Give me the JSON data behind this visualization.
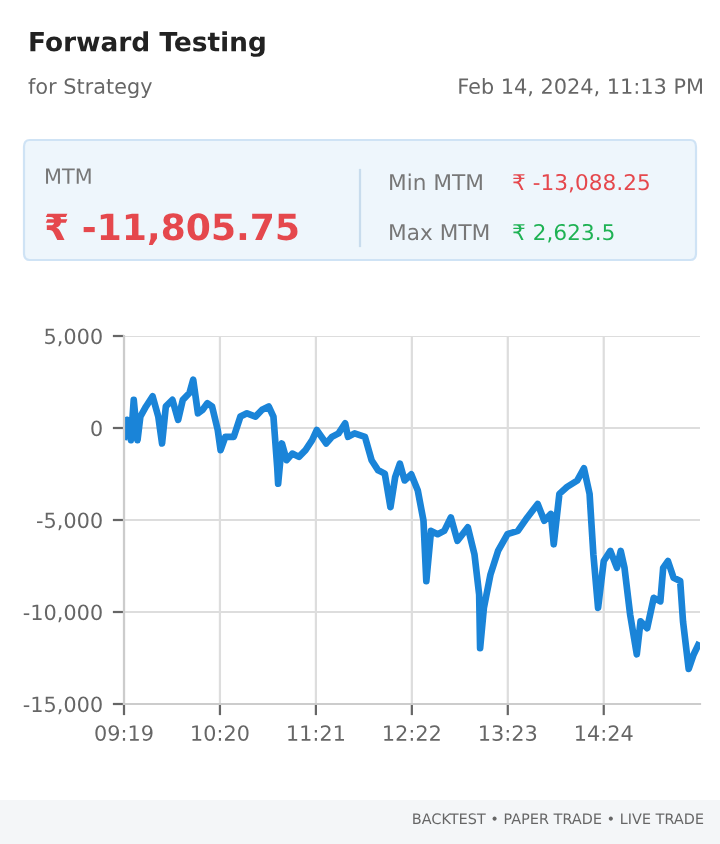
{
  "chart_data": {
    "type": "line",
    "title": "Forward Testing",
    "subtitle": "for Strategy",
    "annotations": [
      "Feb 14, 2024, 11:13 PM",
      "MTM",
      "₹ -11,805.75",
      "Min MTM",
      "₹ -13,088.25",
      "Max MTM",
      "₹ 2,623.5",
      "BACKTEST • PAPER TRADE • LIVE TRADE"
    ],
    "series": [
      {
        "color": "#1a84d8",
        "x": [
          9.32,
          9.35,
          9.39,
          9.42,
          9.46,
          9.49,
          9.55,
          9.62,
          9.68,
          9.72,
          9.76,
          9.83,
          9.89,
          9.94,
          10.01,
          10.05,
          10.1,
          10.15,
          10.2,
          10.25,
          10.31,
          10.34,
          10.39,
          10.48,
          10.55,
          10.62,
          10.71,
          10.78,
          10.85,
          10.9,
          10.94,
          10.95,
          10.99,
          11.04,
          11.1,
          11.17,
          11.24,
          11.31,
          11.36,
          11.41,
          11.46,
          11.52,
          11.59,
          11.66,
          11.69,
          11.76,
          11.87,
          11.94,
          12.01,
          12.08,
          12.14,
          12.19,
          12.24,
          12.29,
          12.36,
          12.43,
          12.49,
          12.52,
          12.57,
          12.64,
          12.71,
          12.78,
          12.85,
          12.96,
          13.03,
          13.08,
          13.09,
          13.13,
          13.2,
          13.28,
          13.38,
          13.49,
          13.59,
          13.7,
          13.77,
          13.84,
          13.87,
          13.93,
          14.01,
          14.12,
          14.19,
          14.25,
          14.29,
          14.34,
          14.4,
          14.47,
          14.54,
          14.58,
          14.62,
          14.68,
          14.75,
          14.79,
          14.86,
          14.93,
          15.0,
          15.03,
          15.08,
          15.14,
          15.21,
          15.24,
          15.3,
          15.35,
          15.4
        ],
        "values": [
          -470,
          440,
          -660,
          1530,
          -660,
          620,
          1170,
          1720,
          620,
          -840,
          1170,
          1530,
          440,
          1530,
          1900,
          2623.5,
          800,
          990,
          1350,
          1170,
          -110,
          -1200,
          -480,
          -480,
          620,
          800,
          620,
          990,
          1170,
          620,
          -2120,
          -3030,
          -840,
          -1750,
          -1390,
          -1570,
          -1200,
          -660,
          -110,
          -480,
          -840,
          -480,
          -290,
          260,
          -480,
          -290,
          -480,
          -1750,
          -2300,
          -2480,
          -4300,
          -2670,
          -1940,
          -2850,
          -2520,
          -3400,
          -5040,
          -8320,
          -5590,
          -5770,
          -5590,
          -4860,
          -6130,
          -5400,
          -6860,
          -9050,
          -11970,
          -9780,
          -7960,
          -6680,
          -5770,
          -5590,
          -4860,
          -4130,
          -5040,
          -4670,
          -6320,
          -3580,
          -3210,
          -2850,
          -2190,
          -3580,
          -6860,
          -9780,
          -7230,
          -6680,
          -7600,
          -6680,
          -7600,
          -10150,
          -12300,
          -10510,
          -10880,
          -9230,
          -9420,
          -7600,
          -7230,
          -8140,
          -8320,
          -10510,
          -13088.25,
          -12340,
          -11805.75
        ]
      }
    ],
    "xlim": [
      9.3167,
      15.42
    ],
    "xticks": [
      {
        "value": 9.3167,
        "label": "09:19"
      },
      {
        "value": 10.3333,
        "label": "10:20"
      },
      {
        "value": 11.35,
        "label": "11:21"
      },
      {
        "value": 12.3667,
        "label": "12:22"
      },
      {
        "value": 13.3833,
        "label": "13:23"
      },
      {
        "value": 14.4,
        "label": "14:24"
      }
    ],
    "ylim": [
      -15000,
      5000
    ],
    "yticks": [
      {
        "value": 5000,
        "label": "5,000"
      },
      0,
      {
        "value": -5000,
        "label": "-5,000"
      },
      {
        "value": -10000,
        "label": "-10,000"
      },
      {
        "value": -15000,
        "label": "-15,000"
      }
    ],
    "grid": true,
    "legend": false,
    "marker": "none",
    "line_style": "solid"
  }
}
